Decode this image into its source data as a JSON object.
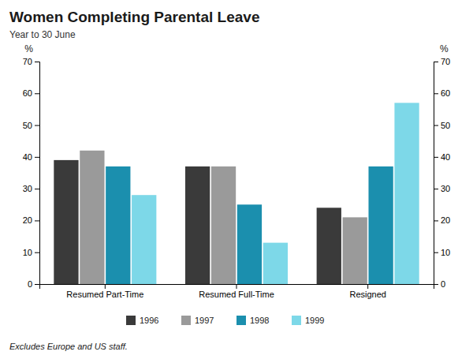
{
  "chart_data": {
    "type": "bar",
    "title": "Women Completing Parental Leave",
    "subtitle": "Year to 30 June",
    "annotations": [
      "Excludes Europe and US staff."
    ],
    "y_label": "%",
    "categories": [
      "Resumed Part-Time",
      "Resumed Full-Time",
      "Resigned"
    ],
    "series": [
      {
        "name": "1996",
        "color": "#3a3a3a",
        "values": [
          39,
          37,
          24
        ]
      },
      {
        "name": "1997",
        "color": "#9a9a9a",
        "values": [
          42,
          37,
          21
        ]
      },
      {
        "name": "1998",
        "color": "#1b8fae",
        "values": [
          37,
          25,
          37
        ]
      },
      {
        "name": "1999",
        "color": "#7dd8e8",
        "values": [
          28,
          13,
          57
        ]
      }
    ],
    "ylim": [
      0,
      70
    ],
    "yticks": [
      0,
      10,
      20,
      30,
      40,
      50,
      60,
      70
    ],
    "grid": false,
    "legend": "bottom"
  }
}
